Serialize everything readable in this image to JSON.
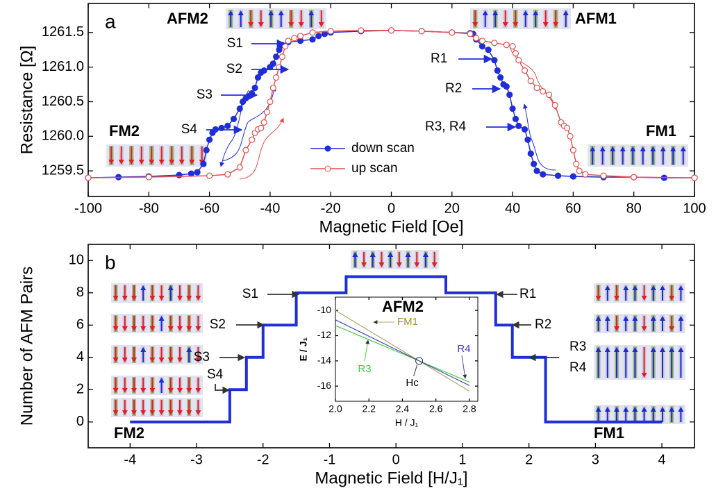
{
  "chart_data": [
    {
      "type": "line",
      "panel_label": "a",
      "x_label": "Magnetic Field [Oe]",
      "y_label": "Resistance [Ω]",
      "xlim": [
        -100,
        100
      ],
      "ylim": [
        1259.13,
        1261.92
      ],
      "xticks": [
        -100,
        -80,
        -60,
        -40,
        -20,
        0,
        20,
        40,
        60,
        80,
        100
      ],
      "yticks": [
        1259.5,
        {
          "value": 1260,
          "label": "1260.0"
        },
        1260.5,
        {
          "value": 1261,
          "label": "1261.0"
        },
        1261.5
      ],
      "series": [
        {
          "name": "down scan",
          "color": "#1f2ed8",
          "marker": "filled",
          "x": [
            -100,
            -90,
            -80,
            -70,
            -66,
            -64,
            -62,
            -61,
            -60,
            -59,
            -58,
            -56,
            -54,
            -52,
            -50,
            -49,
            -48,
            -47,
            -46,
            -45,
            -44,
            -43,
            -42,
            -40,
            -39,
            -38,
            -37,
            -36,
            -34,
            -30,
            -26,
            -24,
            -22,
            -20,
            -10,
            0,
            10,
            20,
            26,
            27,
            28,
            30,
            32,
            34,
            35,
            36,
            37,
            38,
            39,
            40,
            41,
            42,
            44,
            45,
            46,
            47,
            48,
            50,
            55,
            60,
            70,
            80,
            90,
            100
          ],
          "values": [
            1259.4,
            1259.41,
            1259.42,
            1259.44,
            1259.46,
            1259.48,
            1259.6,
            1259.8,
            1259.95,
            1260.05,
            1260.1,
            1260.12,
            1260.15,
            1260.25,
            1260.4,
            1260.5,
            1260.55,
            1260.58,
            1260.62,
            1260.7,
            1260.85,
            1260.92,
            1260.95,
            1261,
            1261.05,
            1261.15,
            1261.25,
            1261.32,
            1261.36,
            1261.38,
            1261.4,
            1261.45,
            1261.48,
            1261.5,
            1261.52,
            1261.53,
            1261.52,
            1261.5,
            1261.49,
            1261.48,
            1261.4,
            1261.3,
            1261.25,
            1261.1,
            1260.95,
            1260.85,
            1260.75,
            1260.72,
            1260.6,
            1260.4,
            1260.25,
            1260.15,
            1260.1,
            1259.95,
            1259.75,
            1259.6,
            1259.5,
            1259.45,
            1259.43,
            1259.42,
            1259.41,
            1259.41,
            1259.4,
            1259.4
          ]
        },
        {
          "name": "up scan",
          "color": "#e5504c",
          "marker": "open",
          "x": [
            -100,
            -80,
            -60,
            -54,
            -50,
            -48,
            -46,
            -45,
            -44,
            -43,
            -42,
            -41,
            -40,
            -39,
            -38,
            -37,
            -36,
            -35,
            -34,
            -32,
            -30,
            -26,
            -20,
            -10,
            0,
            10,
            20,
            26,
            28,
            30,
            34,
            38,
            40,
            41,
            42,
            44,
            46,
            48,
            50,
            52,
            54,
            56,
            57,
            58,
            59,
            60,
            61,
            62,
            64,
            70,
            80,
            100
          ],
          "values": [
            1259.4,
            1259.41,
            1259.43,
            1259.45,
            1259.55,
            1259.8,
            1259.95,
            1260.05,
            1260.1,
            1260.12,
            1260.2,
            1260.35,
            1260.5,
            1260.7,
            1260.85,
            1261,
            1261.15,
            1261.3,
            1261.38,
            1261.42,
            1261.45,
            1261.5,
            1261.52,
            1261.53,
            1261.53,
            1261.52,
            1261.5,
            1261.48,
            1261.42,
            1261.38,
            1261.35,
            1261.32,
            1261.3,
            1261.2,
            1261.1,
            1260.95,
            1260.8,
            1260.7,
            1260.65,
            1260.6,
            1260.45,
            1260.2,
            1260.15,
            1260.12,
            1260,
            1259.8,
            1259.6,
            1259.5,
            1259.45,
            1259.43,
            1259.41,
            1259.4
          ]
        }
      ],
      "step_labels": [
        "S1",
        "S2",
        "S3",
        "S4",
        "R1",
        "R2",
        "R3, R4"
      ],
      "phase_labels": [
        "AFM2",
        "AFM1",
        "FM2",
        "FM1"
      ]
    },
    {
      "type": "line",
      "panel_label": "b",
      "x_label": "Magnetic Field [H/J₁]",
      "y_label": "Number of AFM Pairs",
      "xlim": [
        -4.63,
        4.49
      ],
      "ylim": [
        -1.6,
        11
      ],
      "xticks": [
        -4,
        -3,
        -2,
        -1,
        0,
        1,
        2,
        3,
        4
      ],
      "yticks": [
        0,
        2,
        4,
        6,
        8,
        10
      ],
      "color": "#1f2ed8",
      "x": [
        -4,
        -2.5,
        -2.5,
        -2.25,
        -2.25,
        -2,
        -2,
        -1.5,
        -1.5,
        -0.75,
        -0.75,
        0.75,
        0.75,
        1.5,
        1.5,
        1.75,
        1.75,
        2.25,
        2.25,
        4
      ],
      "values": [
        0,
        0,
        2,
        2,
        4,
        4,
        6,
        6,
        8,
        8,
        9,
        9,
        8,
        8,
        6,
        6,
        4,
        4,
        0,
        0
      ],
      "step_labels": [
        "S1",
        "S2",
        "S3",
        "S4",
        "R1",
        "R2",
        "R3",
        "R4"
      ],
      "phase_labels": [
        "AFM2",
        "FM2",
        "FM1"
      ]
    },
    {
      "type": "line",
      "x_label": "H / J₁",
      "y_label": "E / J₁",
      "xlim": [
        2.0,
        2.85
      ],
      "ylim": [
        -17.2,
        -8.95
      ],
      "xticks": [
        {
          "value": 2.0,
          "label": "2.0"
        },
        2.2,
        2.4,
        2.6,
        {
          "value": 2.8,
          "label": "2.8"
        }
      ],
      "yticks": [
        -10,
        -12,
        -14,
        -16
      ],
      "series": [
        {
          "name": "FM1",
          "color": "#b3a36a",
          "label_color": "#a0962a",
          "x": [
            2.0,
            2.8
          ],
          "values": [
            -10,
            -16.4
          ]
        },
        {
          "name": "R3",
          "color": "#3fd03f",
          "label_color": "#3fd03f",
          "x": [
            2.0,
            2.8
          ],
          "values": [
            -11.2,
            -15.68
          ]
        },
        {
          "name": "R4",
          "color": "#4a4ab8",
          "label_color": "#3b3bd0",
          "x": [
            2.0,
            2.8
          ],
          "values": [
            -10.75,
            -15.95
          ]
        }
      ],
      "crossing": {
        "label": "Hc",
        "x": 2.5,
        "y": -14
      }
    }
  ]
}
